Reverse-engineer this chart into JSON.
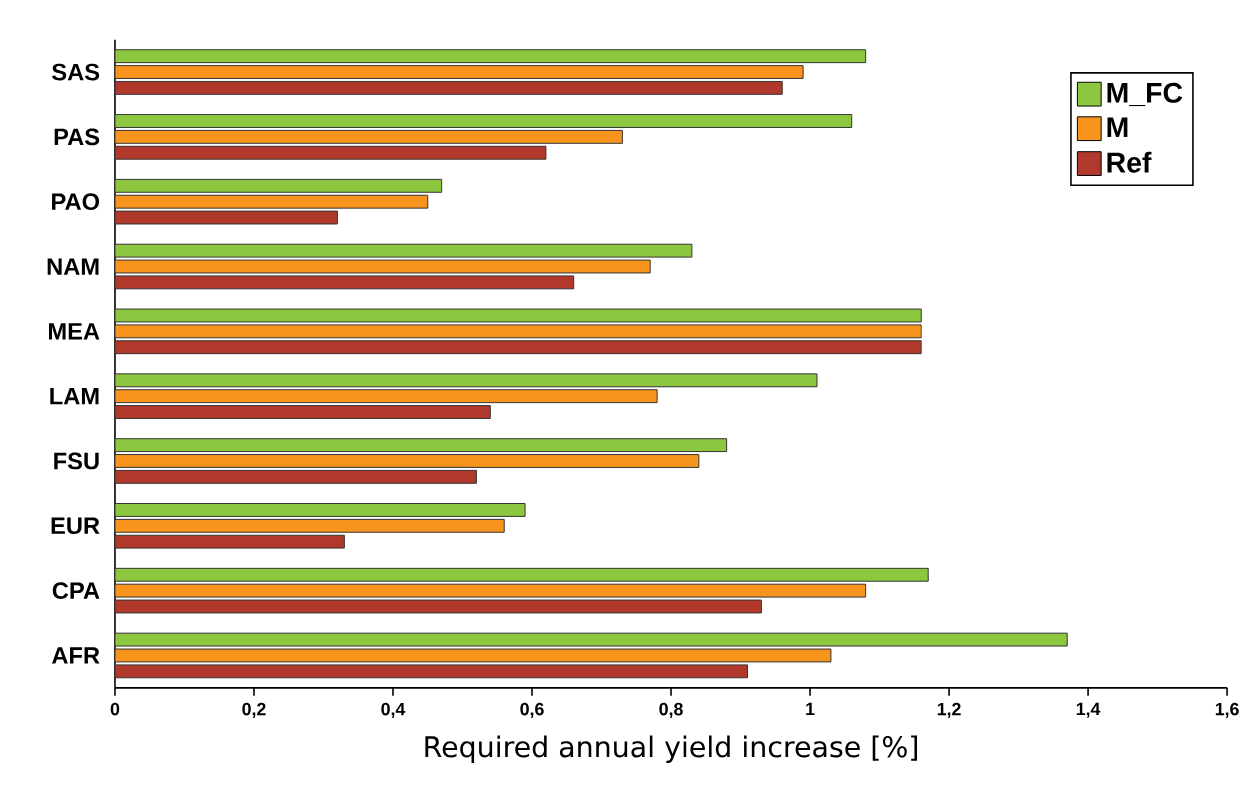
{
  "chart_data": {
    "type": "bar",
    "orientation": "horizontal",
    "xlabel": "Required annual yield increase [%]",
    "categories": [
      "SAS",
      "PAS",
      "PAO",
      "NAM",
      "MEA",
      "LAM",
      "FSU",
      "EUR",
      "CPA",
      "AFR"
    ],
    "series": [
      {
        "name": "M_FC",
        "color": "#8dc63f",
        "values": [
          1.08,
          1.06,
          0.47,
          0.83,
          1.16,
          1.01,
          0.88,
          0.59,
          1.17,
          1.37
        ]
      },
      {
        "name": "M",
        "color": "#f7941d",
        "values": [
          0.99,
          0.73,
          0.45,
          0.77,
          1.16,
          0.78,
          0.84,
          0.56,
          1.08,
          1.03
        ]
      },
      {
        "name": "Ref",
        "color": "#b0392b",
        "values": [
          0.96,
          0.62,
          0.32,
          0.66,
          1.16,
          0.54,
          0.52,
          0.33,
          0.93,
          0.91
        ]
      }
    ],
    "xlim": [
      0,
      1.6
    ],
    "xticks": [
      0,
      {
        "value": 0.2,
        "label": "0,2"
      },
      {
        "value": 0.4,
        "label": "0,4"
      },
      {
        "value": 0.6,
        "label": "0,6"
      },
      {
        "value": 0.8,
        "label": "0,8"
      },
      1,
      {
        "value": 1.2,
        "label": "1,2"
      },
      {
        "value": 1.4,
        "label": "1,4"
      },
      {
        "value": 1.6,
        "label": "1,6"
      }
    ],
    "grid": false,
    "legend": "top right"
  }
}
